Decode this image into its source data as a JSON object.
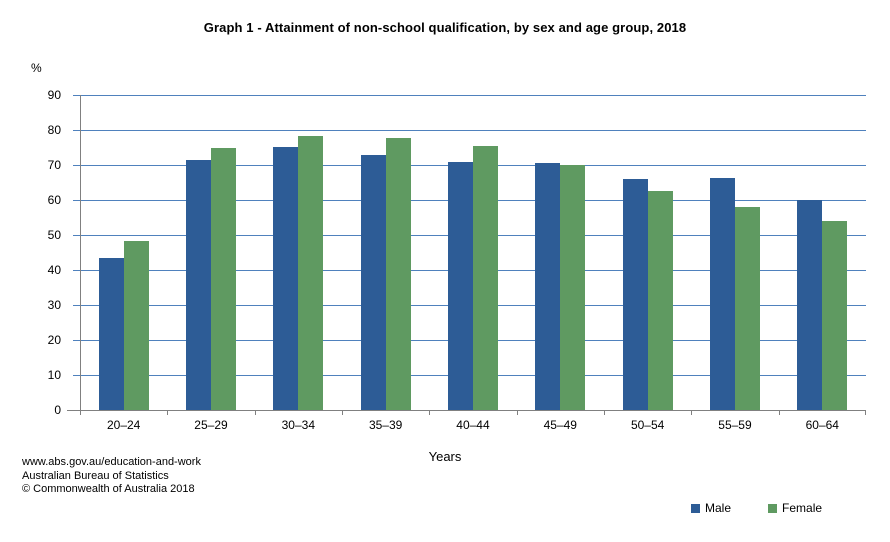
{
  "chart_data": {
    "type": "bar",
    "title": "Graph 1 - Attainment of non-school qualification, by sex and age group, 2018",
    "xlabel": "Years",
    "ylabel": "%",
    "ylim": [
      0,
      90
    ],
    "ytick_step": 10,
    "grid": "horizontal",
    "legend_position": "bottom-right",
    "categories": [
      "20–24",
      "25–29",
      "30–34",
      "35–39",
      "40–44",
      "45–49",
      "50–54",
      "55–59",
      "60–64"
    ],
    "series": [
      {
        "name": "Male",
        "color": "#2d5c96",
        "values": [
          43.4,
          71.3,
          75.2,
          72.8,
          71.0,
          70.5,
          66.1,
          66.4,
          60.1
        ]
      },
      {
        "name": "Female",
        "color": "#5f9a61",
        "values": [
          48.3,
          74.9,
          78.2,
          77.6,
          75.4,
          70.1,
          62.7,
          57.9,
          54.1
        ]
      }
    ],
    "gridline_color": "#4f81bd",
    "axis_color": "#808080"
  },
  "footer": {
    "lines": [
      "www.abs.gov.au/education-and-work",
      "Australian Bureau of Statistics",
      "© Commonwealth of Australia 2018"
    ]
  }
}
